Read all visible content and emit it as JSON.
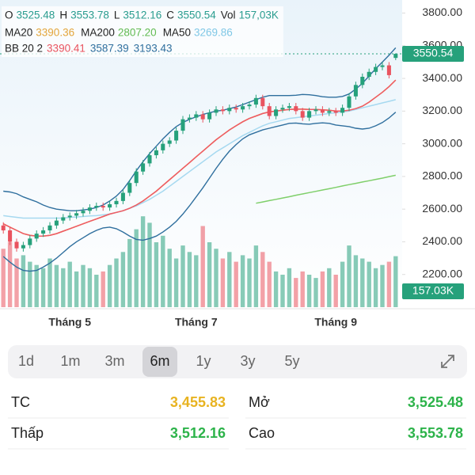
{
  "header": {
    "ohlc": [
      {
        "label": "O",
        "value": "3525.48"
      },
      {
        "label": "H",
        "value": "3553.78"
      },
      {
        "label": "L",
        "value": "3512.16"
      },
      {
        "label": "C",
        "value": "3550.54"
      },
      {
        "label": "Vol",
        "value": "157,03K"
      }
    ],
    "value_color": "#2a9d8f",
    "ma_values": [
      "3390.36",
      "2807.20",
      "3269.86"
    ],
    "ma_value_colors": [
      "#e3a53a",
      "#62bb52",
      "#7fc7e6"
    ],
    "bb_label": "BB 20 2",
    "bb_values": [
      "3390.41",
      "3587.39",
      "3193.43"
    ],
    "bb_value_colors": [
      "#e9535f",
      "#2f6f9e",
      "#2f6f9e"
    ]
  },
  "chart_data": {
    "type": "candlestick",
    "categories": [
      null,
      null,
      null,
      null,
      null,
      null,
      null,
      null,
      null,
      null,
      "Tháng 5",
      null,
      null,
      null,
      null,
      null,
      null,
      null,
      null,
      null,
      null,
      null,
      null,
      null,
      null,
      null,
      null,
      null,
      null,
      "Tháng 7",
      null,
      null,
      null,
      null,
      null,
      null,
      null,
      null,
      null,
      null,
      null,
      null,
      null,
      null,
      null,
      null,
      null,
      null,
      null,
      null,
      "Tháng 9",
      null,
      null,
      null,
      null,
      null,
      null,
      null,
      null,
      null
    ],
    "open": [
      2500,
      2470,
      2400,
      2360,
      2380,
      2420,
      2450,
      2470,
      2500,
      2530,
      2550,
      2560,
      2575,
      2590,
      2610,
      2620,
      2610,
      2630,
      2650,
      2700,
      2760,
      2830,
      2880,
      2930,
      2960,
      3000,
      3020,
      3080,
      3150,
      3160,
      3180,
      3150,
      3190,
      3210,
      3200,
      3220,
      3210,
      3230,
      3240,
      3280,
      3230,
      3170,
      3210,
      3220,
      3230,
      3200,
      3160,
      3200,
      3210,
      3190,
      3200,
      3190,
      3220,
      3290,
      3360,
      3410,
      3440,
      3470,
      3480,
      3525.48
    ],
    "high": [
      2520,
      2490,
      2420,
      2400,
      2440,
      2470,
      2490,
      2520,
      2550,
      2570,
      2580,
      2595,
      2610,
      2630,
      2640,
      2640,
      2650,
      2670,
      2720,
      2780,
      2850,
      2900,
      2950,
      2980,
      3020,
      3040,
      3100,
      3170,
      3180,
      3200,
      3200,
      3210,
      3230,
      3230,
      3240,
      3240,
      3250,
      3260,
      3300,
      3300,
      3250,
      3230,
      3240,
      3250,
      3250,
      3220,
      3220,
      3230,
      3230,
      3220,
      3220,
      3240,
      3310,
      3380,
      3430,
      3460,
      3490,
      3500,
      3500,
      3553.78
    ],
    "low": [
      2450,
      2380,
      2340,
      2340,
      2360,
      2400,
      2430,
      2450,
      2480,
      2510,
      2530,
      2540,
      2555,
      2570,
      2590,
      2590,
      2590,
      2610,
      2630,
      2680,
      2740,
      2810,
      2860,
      2910,
      2940,
      2980,
      3000,
      3060,
      3130,
      3140,
      3130,
      3130,
      3170,
      3180,
      3180,
      3190,
      3190,
      3210,
      3220,
      3210,
      3150,
      3150,
      3190,
      3200,
      3180,
      3140,
      3140,
      3180,
      3170,
      3170,
      3170,
      3170,
      3200,
      3270,
      3340,
      3390,
      3420,
      3450,
      3400,
      3512.16
    ],
    "close": [
      2470,
      2400,
      2360,
      2380,
      2420,
      2450,
      2470,
      2500,
      2530,
      2550,
      2560,
      2575,
      2590,
      2610,
      2620,
      2610,
      2630,
      2650,
      2700,
      2760,
      2830,
      2880,
      2930,
      2960,
      3000,
      3020,
      3080,
      3150,
      3160,
      3180,
      3150,
      3190,
      3210,
      3200,
      3220,
      3210,
      3230,
      3240,
      3280,
      3230,
      3170,
      3210,
      3220,
      3230,
      3200,
      3160,
      3200,
      3210,
      3190,
      3200,
      3190,
      3220,
      3290,
      3360,
      3410,
      3440,
      3470,
      3480,
      3420,
      3550.54
    ],
    "up_color": "#26a17b",
    "down_color": "#e9535f",
    "volume": [
      180,
      200,
      150,
      160,
      140,
      130,
      120,
      150,
      130,
      120,
      140,
      110,
      130,
      120,
      100,
      110,
      130,
      150,
      170,
      210,
      240,
      280,
      260,
      200,
      220,
      180,
      150,
      190,
      170,
      160,
      250,
      200,
      180,
      150,
      170,
      140,
      160,
      150,
      190,
      170,
      140,
      110,
      100,
      120,
      90,
      110,
      100,
      90,
      110,
      120,
      100,
      140,
      190,
      160,
      150,
      140,
      120,
      130,
      140,
      157.03
    ],
    "volume_lim": [
      0,
      400
    ],
    "volume_tag": "157.03K",
    "series": [
      {
        "name": "MA20",
        "color": "#e3a53a",
        "values": [
          2510,
          2490,
          2470,
          2450,
          2440,
          2435,
          2435,
          2440,
          2450,
          2465,
          2480,
          2495,
          2510,
          2525,
          2540,
          2555,
          2570,
          2580,
          2590,
          2605,
          2625,
          2650,
          2680,
          2710,
          2745,
          2780,
          2815,
          2850,
          2885,
          2920,
          2955,
          2990,
          3025,
          3055,
          3085,
          3110,
          3135,
          3155,
          3170,
          3185,
          3195,
          3200,
          3205,
          3210,
          3212,
          3212,
          3210,
          3210,
          3208,
          3205,
          3200,
          3200,
          3205,
          3215,
          3230,
          3255,
          3285,
          3315,
          3350,
          3390.36
        ]
      },
      {
        "name": "MA200",
        "color": "#7fcf6a",
        "values": [
          null,
          null,
          null,
          null,
          null,
          null,
          null,
          null,
          null,
          null,
          null,
          null,
          null,
          null,
          null,
          null,
          null,
          null,
          null,
          null,
          null,
          null,
          null,
          null,
          null,
          null,
          null,
          null,
          null,
          null,
          null,
          null,
          null,
          null,
          null,
          null,
          null,
          null,
          2636,
          2644,
          2652,
          2660,
          2668,
          2676,
          2685,
          2693,
          2701,
          2709,
          2717,
          2725,
          2733,
          2742,
          2750,
          2758,
          2766,
          2774,
          2782,
          2790,
          2799,
          2807.2
        ]
      },
      {
        "name": "MA50",
        "color": "#a6d9f0",
        "values": [
          2560,
          2555,
          2550,
          2545,
          2545,
          2545,
          2545,
          2545,
          2545,
          2545,
          2550,
          2552,
          2555,
          2558,
          2560,
          2565,
          2570,
          2580,
          2590,
          2605,
          2620,
          2640,
          2660,
          2685,
          2710,
          2740,
          2770,
          2800,
          2830,
          2860,
          2890,
          2920,
          2950,
          2975,
          3000,
          3025,
          3050,
          3070,
          3090,
          3110,
          3125,
          3135,
          3145,
          3155,
          3160,
          3165,
          3170,
          3175,
          3180,
          3185,
          3190,
          3195,
          3200,
          3210,
          3220,
          3230,
          3240,
          3250,
          3260,
          3269.86
        ]
      }
    ],
    "bands": {
      "mid_color": "#ef5a65",
      "color": "#2f6f9e",
      "upper": [
        2710,
        2705,
        2695,
        2675,
        2660,
        2645,
        2625,
        2610,
        2600,
        2595,
        2590,
        2590,
        2595,
        2600,
        2610,
        2625,
        2650,
        2680,
        2720,
        2775,
        2835,
        2890,
        2940,
        2985,
        3030,
        3070,
        3105,
        3130,
        3150,
        3165,
        3180,
        3190,
        3200,
        3205,
        3215,
        3225,
        3240,
        3255,
        3270,
        3285,
        3295,
        3295,
        3295,
        3295,
        3297,
        3302,
        3300,
        3295,
        3288,
        3285,
        3285,
        3290,
        3305,
        3335,
        3370,
        3415,
        3460,
        3500,
        3542,
        3587.39
      ],
      "lower": [
        2310,
        2275,
        2245,
        2225,
        2220,
        2225,
        2245,
        2270,
        2300,
        2335,
        2370,
        2400,
        2425,
        2450,
        2470,
        2485,
        2490,
        2480,
        2460,
        2435,
        2415,
        2410,
        2420,
        2435,
        2460,
        2490,
        2525,
        2570,
        2620,
        2675,
        2730,
        2790,
        2850,
        2905,
        2955,
        2995,
        3030,
        3055,
        3070,
        3085,
        3095,
        3105,
        3115,
        3125,
        3127,
        3122,
        3120,
        3125,
        3128,
        3125,
        3115,
        3110,
        3105,
        3095,
        3090,
        3095,
        3110,
        3130,
        3158,
        3193.43
      ]
    },
    "ylim": [
      2000,
      3880
    ],
    "yticks": [
      {
        "value": 3800,
        "label": "3800.00"
      },
      {
        "value": 3600,
        "label": "3600.00"
      },
      {
        "value": 3400,
        "label": "3400.00"
      },
      {
        "value": 3200,
        "label": "3200.00"
      },
      {
        "value": 3000,
        "label": "3000.00"
      },
      {
        "value": 2800,
        "label": "2800.00"
      },
      {
        "value": 2600,
        "label": "2600.00"
      },
      {
        "value": 2400,
        "label": "2400.00"
      },
      {
        "value": 2200,
        "label": "2200.00"
      }
    ]
  },
  "ranges": [
    "1d",
    "1m",
    "3m",
    "6m",
    "1y",
    "3y",
    "5y"
  ],
  "selected_range": 3,
  "stats": [
    [
      {
        "label": "TC",
        "value": "3,455.83",
        "color": "#e8b321"
      },
      {
        "label": "Mở",
        "value": "3,525.48",
        "color": "#2db34a"
      }
    ],
    [
      {
        "label": "Thấp",
        "value": "3,512.16",
        "color": "#2db34a"
      },
      {
        "label": "Cao",
        "value": "3,553.78",
        "color": "#2db34a"
      }
    ]
  ]
}
